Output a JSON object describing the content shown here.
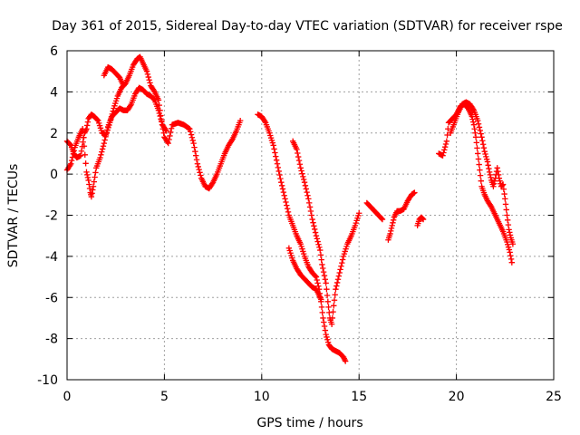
{
  "chart_data": {
    "type": "scatter",
    "title": "Day 361 of 2015, Sidereal Day-to-day VTEC variation (SDTVAR) for receiver rspe",
    "xlabel": "GPS time / hours",
    "ylabel": "SDTVAR / TECUs",
    "xlim": [
      0,
      25
    ],
    "ylim": [
      -10,
      6
    ],
    "xticks": [
      0,
      5,
      10,
      15,
      20,
      25
    ],
    "xtick_labels": [
      "0",
      "5",
      "10",
      "15",
      "20",
      "25"
    ],
    "yticks": [
      -10,
      -8,
      -6,
      -4,
      -2,
      0,
      2,
      4,
      6
    ],
    "ytick_labels": [
      "-10",
      "-8",
      "-6",
      "-4",
      "-2",
      "0",
      "2",
      "4",
      "6"
    ],
    "grid": true,
    "marker": "plus",
    "color": "#ff0000",
    "series": [
      {
        "points": [
          [
            0.0,
            1.6
          ],
          [
            0.2,
            1.4
          ],
          [
            0.35,
            1.0
          ],
          [
            0.5,
            0.8
          ],
          [
            0.7,
            0.9
          ],
          [
            0.9,
            2.0
          ],
          [
            1.0,
            2.2
          ],
          [
            1.1,
            2.7
          ],
          [
            1.25,
            2.9
          ],
          [
            1.4,
            2.8
          ],
          [
            1.6,
            2.6
          ],
          [
            1.8,
            2.0
          ],
          [
            2.0,
            1.9
          ],
          [
            2.2,
            2.5
          ],
          [
            2.4,
            3.2
          ],
          [
            2.6,
            3.8
          ],
          [
            2.8,
            4.2
          ],
          [
            3.0,
            4.4
          ],
          [
            3.2,
            4.8
          ],
          [
            3.4,
            5.3
          ],
          [
            3.6,
            5.6
          ],
          [
            3.75,
            5.7
          ],
          [
            3.9,
            5.4
          ],
          [
            4.1,
            5.0
          ],
          [
            4.3,
            4.3
          ],
          [
            4.5,
            4.0
          ],
          [
            4.7,
            3.6
          ],
          [
            4.85,
            2.6
          ],
          [
            5.0,
            1.8
          ],
          [
            5.2,
            1.5
          ],
          [
            5.4,
            2.4
          ],
          [
            5.7,
            2.5
          ],
          [
            6.0,
            2.4
          ],
          [
            6.3,
            2.2
          ],
          [
            6.5,
            1.5
          ],
          [
            6.7,
            0.5
          ],
          [
            6.9,
            -0.2
          ],
          [
            7.1,
            -0.6
          ],
          [
            7.3,
            -0.7
          ],
          [
            7.5,
            -0.4
          ],
          [
            7.7,
            0.0
          ],
          [
            7.9,
            0.5
          ],
          [
            8.1,
            1.0
          ],
          [
            8.3,
            1.4
          ],
          [
            8.5,
            1.7
          ],
          [
            8.7,
            2.1
          ],
          [
            8.9,
            2.6
          ]
        ]
      },
      {
        "points": [
          [
            0.0,
            0.2
          ],
          [
            0.2,
            0.5
          ],
          [
            0.4,
            1.3
          ],
          [
            0.6,
            1.8
          ],
          [
            0.8,
            2.2
          ],
          [
            1.0,
            0.1
          ],
          [
            1.1,
            -0.3
          ],
          [
            1.2,
            -0.9
          ],
          [
            1.25,
            -1.1
          ],
          [
            1.35,
            -0.6
          ],
          [
            1.5,
            0.3
          ],
          [
            1.7,
            0.8
          ],
          [
            1.9,
            1.5
          ],
          [
            2.1,
            2.3
          ],
          [
            2.3,
            2.8
          ],
          [
            2.5,
            3.0
          ],
          [
            2.7,
            3.2
          ],
          [
            2.9,
            3.1
          ],
          [
            3.1,
            3.1
          ],
          [
            3.3,
            3.4
          ],
          [
            3.5,
            3.9
          ],
          [
            3.7,
            4.2
          ],
          [
            3.9,
            4.1
          ],
          [
            4.1,
            3.9
          ],
          [
            4.3,
            3.8
          ],
          [
            4.5,
            3.6
          ],
          [
            4.7,
            3.1
          ],
          [
            4.9,
            2.4
          ],
          [
            5.1,
            2.1
          ]
        ]
      },
      {
        "points": [
          [
            1.9,
            4.8
          ],
          [
            2.1,
            5.2
          ],
          [
            2.3,
            5.1
          ],
          [
            2.5,
            4.9
          ],
          [
            2.7,
            4.7
          ],
          [
            2.9,
            4.3
          ]
        ]
      },
      {
        "points": [
          [
            9.8,
            2.9
          ],
          [
            10.0,
            2.8
          ],
          [
            10.2,
            2.5
          ],
          [
            10.4,
            2.0
          ],
          [
            10.6,
            1.4
          ],
          [
            10.8,
            0.5
          ],
          [
            11.0,
            -0.4
          ],
          [
            11.2,
            -1.2
          ],
          [
            11.4,
            -2.0
          ],
          [
            11.6,
            -2.5
          ],
          [
            11.8,
            -3.0
          ],
          [
            12.0,
            -3.4
          ],
          [
            12.2,
            -4.0
          ],
          [
            12.4,
            -4.5
          ],
          [
            12.6,
            -4.8
          ],
          [
            12.8,
            -5.0
          ],
          [
            12.95,
            -5.6
          ],
          [
            13.05,
            -6.2
          ],
          [
            13.15,
            -7.0
          ],
          [
            13.3,
            -7.8
          ],
          [
            13.45,
            -8.3
          ],
          [
            13.6,
            -8.5
          ],
          [
            13.8,
            -8.6
          ],
          [
            14.0,
            -8.7
          ],
          [
            14.2,
            -8.9
          ],
          [
            14.3,
            -9.1
          ]
        ]
      },
      {
        "points": [
          [
            11.4,
            -3.6
          ],
          [
            11.6,
            -4.2
          ],
          [
            11.8,
            -4.6
          ],
          [
            12.0,
            -4.9
          ],
          [
            12.2,
            -5.1
          ],
          [
            12.4,
            -5.3
          ],
          [
            12.6,
            -5.5
          ],
          [
            12.8,
            -5.6
          ],
          [
            12.95,
            -5.9
          ],
          [
            13.05,
            -6.1
          ]
        ]
      },
      {
        "points": [
          [
            11.6,
            1.6
          ],
          [
            11.8,
            1.2
          ],
          [
            12.0,
            0.3
          ],
          [
            12.2,
            -0.4
          ],
          [
            12.4,
            -1.2
          ],
          [
            12.6,
            -2.2
          ],
          [
            12.8,
            -3.0
          ],
          [
            13.0,
            -3.7
          ],
          [
            13.1,
            -4.4
          ],
          [
            13.3,
            -5.3
          ],
          [
            13.4,
            -6.2
          ],
          [
            13.5,
            -7.0
          ],
          [
            13.6,
            -7.3
          ],
          [
            13.7,
            -6.4
          ],
          [
            13.8,
            -5.6
          ],
          [
            14.0,
            -4.8
          ],
          [
            14.2,
            -4.0
          ],
          [
            14.4,
            -3.4
          ],
          [
            14.6,
            -3.0
          ],
          [
            14.8,
            -2.5
          ],
          [
            15.0,
            -1.9
          ]
        ]
      },
      {
        "points": [
          [
            15.4,
            -1.4
          ],
          [
            15.6,
            -1.6
          ],
          [
            15.8,
            -1.8
          ],
          [
            16.0,
            -2.0
          ],
          [
            16.2,
            -2.2
          ]
        ]
      },
      {
        "points": [
          [
            16.5,
            -3.2
          ],
          [
            16.6,
            -2.9
          ],
          [
            16.7,
            -2.5
          ],
          [
            16.8,
            -2.1
          ],
          [
            16.95,
            -1.8
          ],
          [
            17.1,
            -1.8
          ],
          [
            17.3,
            -1.7
          ],
          [
            17.5,
            -1.3
          ],
          [
            17.7,
            -1.0
          ],
          [
            17.85,
            -0.9
          ]
        ]
      },
      {
        "points": [
          [
            18.0,
            -2.5
          ],
          [
            18.1,
            -2.2
          ],
          [
            18.2,
            -2.1
          ],
          [
            18.3,
            -2.2
          ]
        ]
      },
      {
        "points": [
          [
            19.1,
            1.0
          ],
          [
            19.3,
            0.9
          ],
          [
            19.5,
            1.6
          ],
          [
            19.6,
            2.5
          ],
          [
            19.8,
            2.7
          ],
          [
            20.0,
            2.9
          ],
          [
            20.2,
            3.3
          ],
          [
            20.4,
            3.4
          ],
          [
            20.6,
            3.2
          ],
          [
            20.8,
            2.8
          ],
          [
            20.9,
            2.4
          ],
          [
            21.0,
            1.8
          ],
          [
            21.1,
            1.0
          ],
          [
            21.2,
            0.2
          ],
          [
            21.3,
            -0.6
          ],
          [
            21.45,
            -1.0
          ],
          [
            21.6,
            -1.3
          ],
          [
            21.8,
            -1.6
          ],
          [
            22.0,
            -2.0
          ],
          [
            22.2,
            -2.4
          ],
          [
            22.4,
            -2.8
          ],
          [
            22.6,
            -3.3
          ],
          [
            22.75,
            -3.8
          ],
          [
            22.85,
            -4.3
          ]
        ]
      },
      {
        "points": [
          [
            19.7,
            2.0
          ],
          [
            19.9,
            2.5
          ],
          [
            20.1,
            3.0
          ],
          [
            20.3,
            3.4
          ],
          [
            20.5,
            3.5
          ],
          [
            20.7,
            3.4
          ],
          [
            20.9,
            3.1
          ],
          [
            21.1,
            2.6
          ],
          [
            21.3,
            1.8
          ],
          [
            21.45,
            1.1
          ],
          [
            21.6,
            0.6
          ],
          [
            21.7,
            0.1
          ],
          [
            21.8,
            -0.3
          ],
          [
            21.9,
            -0.6
          ],
          [
            22.0,
            -0.2
          ],
          [
            22.1,
            0.3
          ],
          [
            22.2,
            -0.2
          ],
          [
            22.3,
            -0.6
          ],
          [
            22.4,
            -0.5
          ],
          [
            22.5,
            -1.2
          ],
          [
            22.6,
            -2.0
          ],
          [
            22.7,
            -2.7
          ],
          [
            22.8,
            -3.1
          ],
          [
            22.9,
            -3.4
          ]
        ]
      }
    ]
  }
}
